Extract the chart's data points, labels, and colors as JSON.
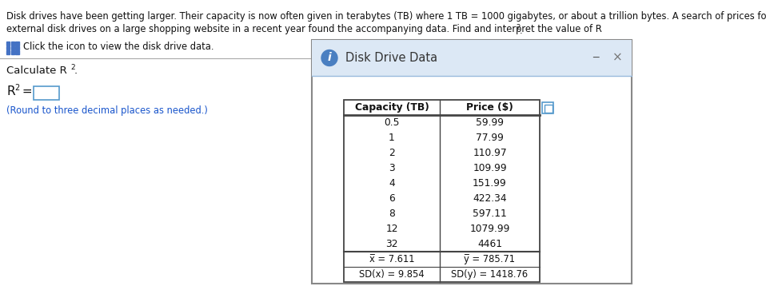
{
  "title_line1": "Disk drives have been getting larger. Their capacity is now often given in terabytes (TB) where 1 TB = 1000 gigabytes, or about a trillion bytes. A search of prices for",
  "title_line2": "external disk drives on a large shopping website in a recent year found the accompanying data. Find and interpret the value of R",
  "click_text": "Click the icon to view the disk drive data.",
  "calculate_label": "Calculate R",
  "r2_label": "R",
  "round_text": "(Round to three decimal places as needed.)",
  "dialog_title": "Disk Drive Data",
  "col1_header": "Capacity (TB)",
  "col2_header": "Price ($)",
  "capacity": [
    "0.5",
    "1",
    "2",
    "3",
    "4",
    "6",
    "8",
    "12",
    "32"
  ],
  "price": [
    "59.99",
    "77.99",
    "110.97",
    "109.99",
    "151.99",
    "422.34",
    "597.11",
    "1079.99",
    "4461"
  ],
  "stat_xbar": "x̅ = 7.611",
  "stat_ybar": "y̅ = 785.71",
  "stat_sdx": "SD(x) = 9.854",
  "stat_sdy": "SD(y) = 1418.76",
  "bg_color": "#ffffff",
  "dialog_header_bg": "#dce8f5",
  "dialog_border": "#888888",
  "table_border": "#444444",
  "text_color": "#111111",
  "blue_color": "#1a56cc",
  "grid_icon_color": "#4472c4",
  "info_icon_color": "#4a7fc1",
  "input_border_color": "#5599cc",
  "copy_icon_color": "#5599cc",
  "separator_color": "#aaaaaa",
  "header_sep_color": "#99bbdd"
}
